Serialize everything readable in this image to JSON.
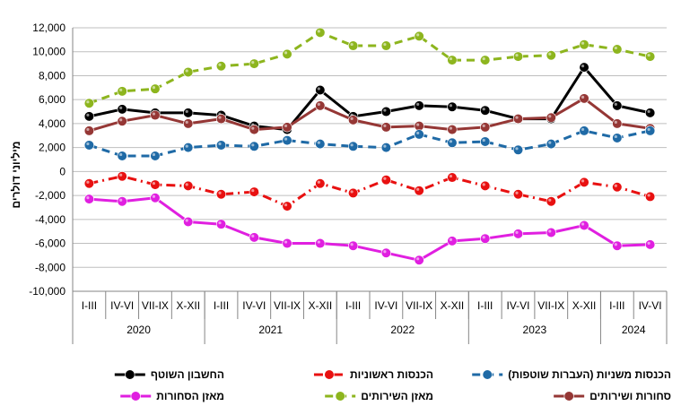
{
  "chart_data": {
    "type": "line",
    "ylabel": "מיליוני דולרים",
    "ylim": [
      -10000,
      12000
    ],
    "yticks": [
      -10000,
      -8000,
      -6000,
      -4000,
      -2000,
      0,
      2000,
      4000,
      6000,
      8000,
      10000,
      12000
    ],
    "ytick_labels": [
      "-10,000",
      "-8,000",
      "-6,000",
      "-4,000",
      "-2,000",
      "0",
      "2,000",
      "4,000",
      "6,000",
      "8,000",
      "10,000",
      "12,000"
    ],
    "categories": [
      "I-III",
      "IV-VI",
      "VII-IX",
      "X-XII",
      "I-III",
      "IV-VI",
      "VII-IX",
      "X-XII",
      "I-III",
      "IV-VI",
      "VII-IX",
      "X-XII",
      "I-III",
      "IV-VI",
      "VII-IX",
      "X-XII",
      "I-III",
      "IV-VI"
    ],
    "year_groups": [
      {
        "label": "2020",
        "count": 4
      },
      {
        "label": "2021",
        "count": 4
      },
      {
        "label": "2022",
        "count": 4
      },
      {
        "label": "2023",
        "count": 4
      },
      {
        "label": "2024",
        "count": 2
      }
    ],
    "grid": "horizontal",
    "legend_position": "bottom",
    "series": [
      {
        "name": "מאזן השירותים",
        "color": "#8DB51E",
        "style": "dashed",
        "values": [
          5700,
          6700,
          6900,
          8300,
          8800,
          9000,
          9800,
          11600,
          10500,
          10500,
          11300,
          9300,
          9300,
          9600,
          9700,
          10600,
          10200,
          9600
        ]
      },
      {
        "name": "החשבון השוטף",
        "color": "#000000",
        "style": "solid",
        "values": [
          4600,
          5200,
          4900,
          4900,
          4700,
          3800,
          3500,
          6800,
          4600,
          5000,
          5500,
          5400,
          5100,
          4400,
          4400,
          8700,
          5500,
          4900
        ]
      },
      {
        "name": "סחורות ושירותים",
        "color": "#953735",
        "style": "solid",
        "values": [
          3400,
          4200,
          4700,
          4000,
          4400,
          3500,
          3700,
          5500,
          4300,
          3700,
          3800,
          3500,
          3700,
          4400,
          4500,
          6100,
          4000,
          3600
        ]
      },
      {
        "name": "הכנסות משניות (העברות שוטפות)",
        "color": "#1F6AA6",
        "style": "dashed",
        "values": [
          2200,
          1300,
          1300,
          2000,
          2200,
          2100,
          2600,
          2300,
          2100,
          2000,
          3100,
          2400,
          2500,
          1800,
          2300,
          3400,
          2800,
          3400
        ]
      },
      {
        "name": "הכנסות ראשוניות",
        "color": "#E81010",
        "style": "dashdot",
        "values": [
          -1000,
          -400,
          -1100,
          -1200,
          -1900,
          -1700,
          -2900,
          -1000,
          -1800,
          -700,
          -1600,
          -500,
          -1200,
          -1900,
          -2500,
          -900,
          -1300,
          -2100
        ]
      },
      {
        "name": "מאזן הסחורות",
        "color": "#E01FE0",
        "style": "solid",
        "values": [
          -2300,
          -2500,
          -2200,
          -4200,
          -4400,
          -5500,
          -6000,
          -6000,
          -6200,
          -6800,
          -7400,
          -5800,
          -5600,
          -5200,
          -5100,
          -4500,
          -6200,
          -6100
        ]
      }
    ],
    "legend_order": [
      "החשבון השוטף",
      "הכנסות ראשוניות",
      "הכנסות משניות (העברות שוטפות)",
      "מאזן הסחורות",
      "מאזן השירותים",
      "סחורות ושירותים"
    ]
  }
}
